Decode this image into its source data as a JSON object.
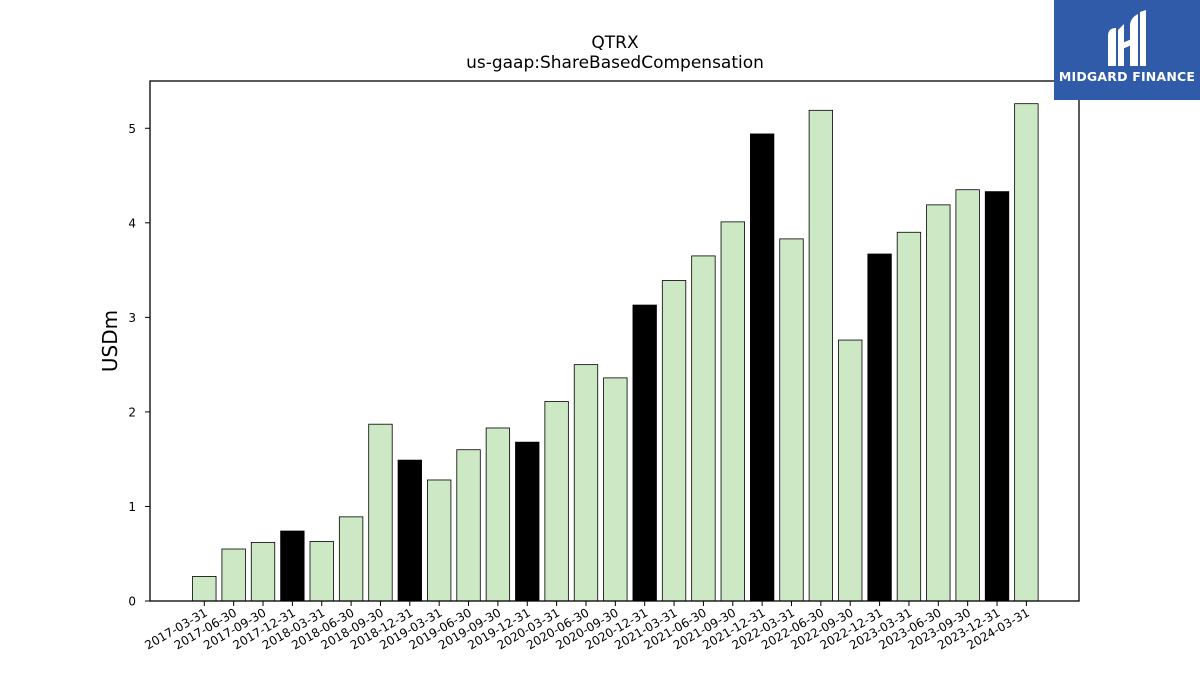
{
  "chart_data": {
    "type": "bar",
    "title": "QTRX",
    "subtitle": "us-gaap:ShareBasedCompensation",
    "ylabel": "USDm",
    "xlabel": "",
    "ylim": [
      0,
      5.5
    ],
    "yticks": [
      "0",
      "1",
      "2",
      "3",
      "4",
      "5"
    ],
    "grid": false,
    "categories": [
      "2017-03-31",
      "2017-06-30",
      "2017-09-30",
      "2017-12-31",
      "2018-03-31",
      "2018-06-30",
      "2018-09-30",
      "2018-12-31",
      "2019-03-31",
      "2019-06-30",
      "2019-09-30",
      "2019-12-31",
      "2020-03-31",
      "2020-06-30",
      "2020-09-30",
      "2020-12-31",
      "2021-03-31",
      "2021-06-30",
      "2021-09-30",
      "2021-12-31",
      "2022-03-31",
      "2022-06-30",
      "2022-09-30",
      "2022-12-31",
      "2023-03-31",
      "2023-06-30",
      "2023-09-30",
      "2023-12-31",
      "2024-03-31"
    ],
    "values": [
      0.26,
      0.55,
      0.62,
      0.74,
      0.63,
      0.89,
      1.87,
      1.49,
      1.28,
      1.6,
      1.83,
      1.68,
      2.11,
      2.5,
      2.36,
      3.13,
      3.39,
      3.65,
      4.01,
      4.94,
      3.83,
      5.19,
      2.76,
      3.67,
      3.9,
      4.19,
      4.35,
      4.33,
      5.26
    ],
    "colors": {
      "quarter": "#cce8c4",
      "year_end": "#000000",
      "edge": "#000000"
    }
  },
  "logo": {
    "text": "MIDGARD FINANCE",
    "icon": "midgard-logo-icon",
    "background": "#2f5ba9"
  }
}
